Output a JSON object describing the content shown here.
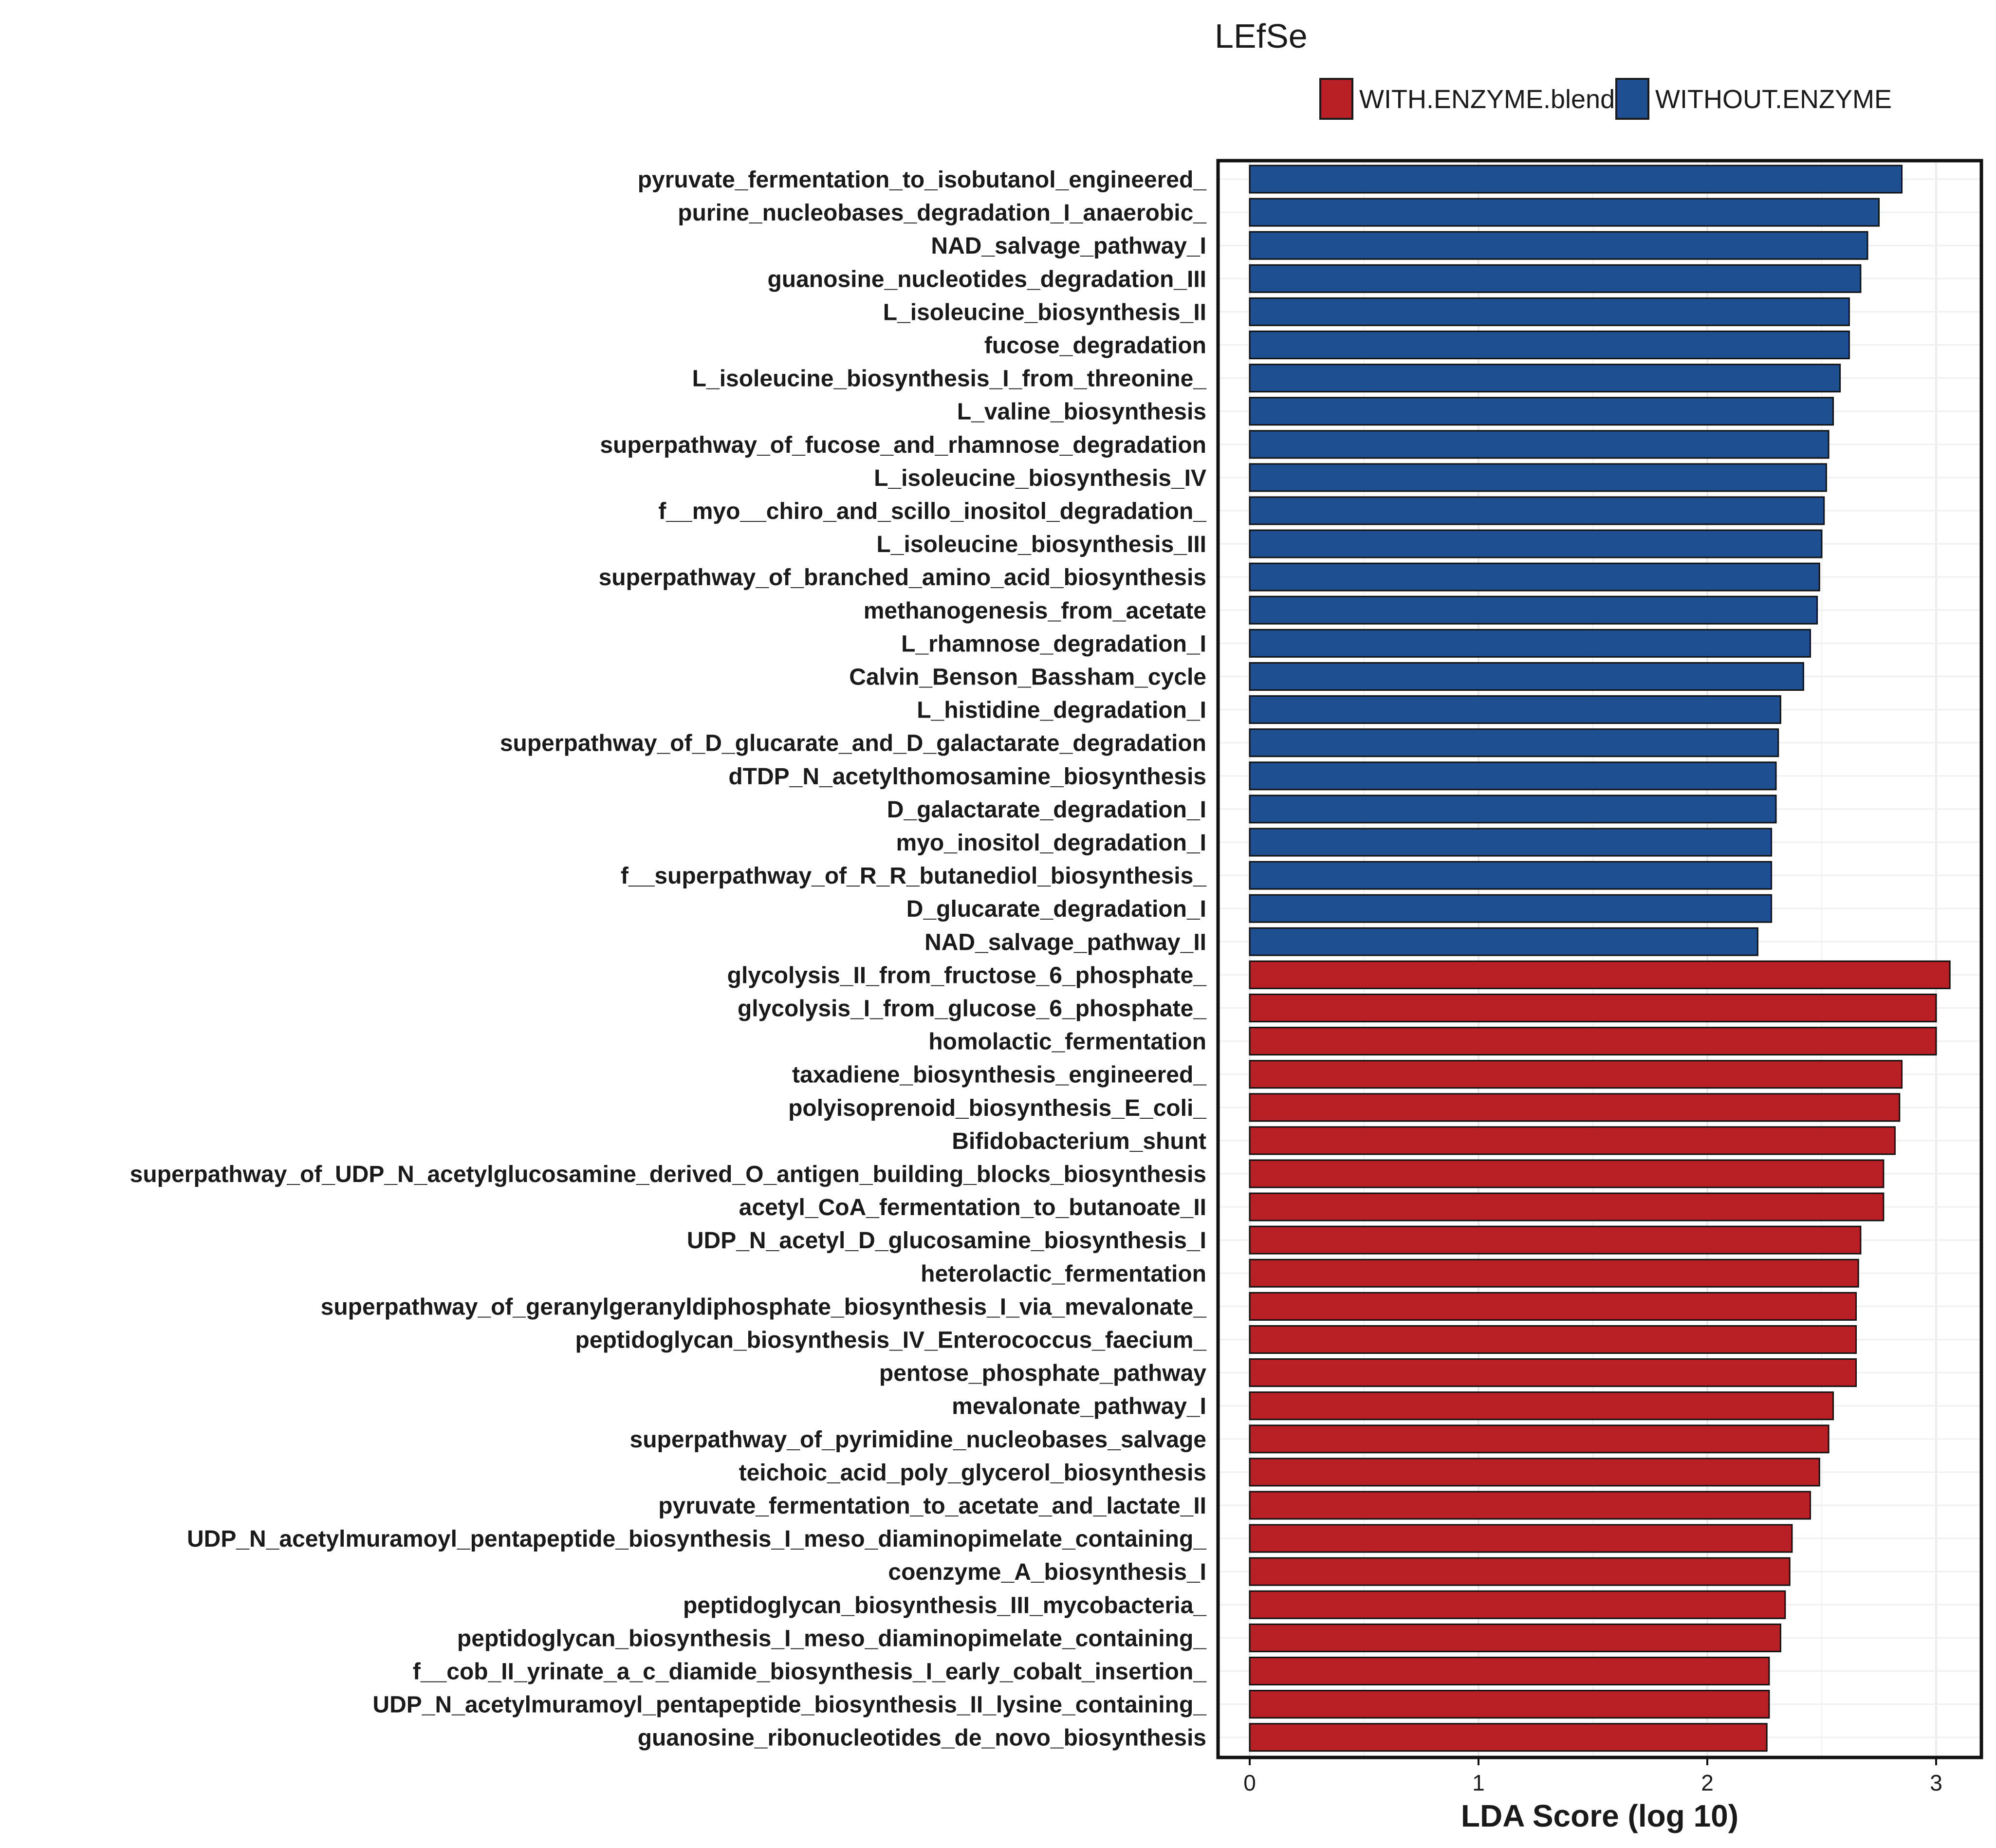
{
  "chart_data": {
    "type": "bar",
    "orientation": "horizontal",
    "title": "LEfSe",
    "xlabel": "LDA Score (log 10)",
    "ylabel": "",
    "xlim": [
      0,
      3.15
    ],
    "xticks": [
      0,
      1,
      2,
      3
    ],
    "grid": true,
    "legend_position": "top-right",
    "legend": [
      {
        "name": "WITH.ENZYME.blend",
        "color": "#b82025"
      },
      {
        "name": "WITHOUT.ENZYME",
        "color": "#1d4f91"
      }
    ],
    "categories": [
      "pyruvate_fermentation_to_isobutanol_engineered_",
      "purine_nucleobases_degradation_I_anaerobic_",
      "NAD_salvage_pathway_I",
      "guanosine_nucleotides_degradation_III",
      "L_isoleucine_biosynthesis_II",
      "fucose_degradation",
      "L_isoleucine_biosynthesis_I_from_threonine_",
      "L_valine_biosynthesis",
      "superpathway_of_fucose_and_rhamnose_degradation",
      "L_isoleucine_biosynthesis_IV",
      "f__myo__chiro_and_scillo_inositol_degradation_",
      "L_isoleucine_biosynthesis_III",
      "superpathway_of_branched_amino_acid_biosynthesis",
      "methanogenesis_from_acetate",
      "L_rhamnose_degradation_I",
      "Calvin_Benson_Bassham_cycle",
      "L_histidine_degradation_I",
      "superpathway_of_D_glucarate_and_D_galactarate_degradation",
      "dTDP_N_acetylthomosamine_biosynthesis",
      "D_galactarate_degradation_I",
      "myo_inositol_degradation_I",
      "f__superpathway_of_R_R_butanediol_biosynthesis_",
      "D_glucarate_degradation_I",
      "NAD_salvage_pathway_II",
      "glycolysis_II_from_fructose_6_phosphate_",
      "glycolysis_I_from_glucose_6_phosphate_",
      "homolactic_fermentation",
      "taxadiene_biosynthesis_engineered_",
      "polyisoprenoid_biosynthesis_E_coli_",
      "Bifidobacterium_shunt",
      "superpathway_of_UDP_N_acetylglucosamine_derived_O_antigen_building_blocks_biosynthesis",
      "acetyl_CoA_fermentation_to_butanoate_II",
      "UDP_N_acetyl_D_glucosamine_biosynthesis_I",
      "heterolactic_fermentation",
      "superpathway_of_geranylgeranyldiphosphate_biosynthesis_I_via_mevalonate_",
      "peptidoglycan_biosynthesis_IV_Enterococcus_faecium_",
      "pentose_phosphate_pathway",
      "mevalonate_pathway_I",
      "superpathway_of_pyrimidine_nucleobases_salvage",
      "teichoic_acid_poly_glycerol_biosynthesis",
      "pyruvate_fermentation_to_acetate_and_lactate_II",
      "UDP_N_acetylmuramoyl_pentapeptide_biosynthesis_I_meso_diaminopimelate_containing_",
      "coenzyme_A_biosynthesis_I",
      "peptidoglycan_biosynthesis_III_mycobacteria_",
      "peptidoglycan_biosynthesis_I_meso_diaminopimelate_containing_",
      "f__cob_II_yrinate_a_c_diamide_biosynthesis_I_early_cobalt_insertion_",
      "UDP_N_acetylmuramoyl_pentapeptide_biosynthesis_II_lysine_containing_",
      "guanosine_ribonucleotides_de_novo_biosynthesis"
    ],
    "values": [
      2.85,
      2.75,
      2.7,
      2.67,
      2.62,
      2.62,
      2.58,
      2.55,
      2.53,
      2.52,
      2.51,
      2.5,
      2.49,
      2.48,
      2.45,
      2.42,
      2.32,
      2.31,
      2.3,
      2.3,
      2.28,
      2.28,
      2.28,
      2.22,
      3.06,
      3.0,
      3.0,
      2.85,
      2.84,
      2.82,
      2.77,
      2.77,
      2.67,
      2.66,
      2.65,
      2.65,
      2.65,
      2.55,
      2.53,
      2.49,
      2.45,
      2.37,
      2.36,
      2.34,
      2.32,
      2.27,
      2.27,
      2.26
    ],
    "groups": [
      "WITHOUT.ENZYME",
      "WITHOUT.ENZYME",
      "WITHOUT.ENZYME",
      "WITHOUT.ENZYME",
      "WITHOUT.ENZYME",
      "WITHOUT.ENZYME",
      "WITHOUT.ENZYME",
      "WITHOUT.ENZYME",
      "WITHOUT.ENZYME",
      "WITHOUT.ENZYME",
      "WITHOUT.ENZYME",
      "WITHOUT.ENZYME",
      "WITHOUT.ENZYME",
      "WITHOUT.ENZYME",
      "WITHOUT.ENZYME",
      "WITHOUT.ENZYME",
      "WITHOUT.ENZYME",
      "WITHOUT.ENZYME",
      "WITHOUT.ENZYME",
      "WITHOUT.ENZYME",
      "WITHOUT.ENZYME",
      "WITHOUT.ENZYME",
      "WITHOUT.ENZYME",
      "WITHOUT.ENZYME",
      "WITH.ENZYME.blend",
      "WITH.ENZYME.blend",
      "WITH.ENZYME.blend",
      "WITH.ENZYME.blend",
      "WITH.ENZYME.blend",
      "WITH.ENZYME.blend",
      "WITH.ENZYME.blend",
      "WITH.ENZYME.blend",
      "WITH.ENZYME.blend",
      "WITH.ENZYME.blend",
      "WITH.ENZYME.blend",
      "WITH.ENZYME.blend",
      "WITH.ENZYME.blend",
      "WITH.ENZYME.blend",
      "WITH.ENZYME.blend",
      "WITH.ENZYME.blend",
      "WITH.ENZYME.blend",
      "WITH.ENZYME.blend",
      "WITH.ENZYME.blend",
      "WITH.ENZYME.blend",
      "WITH.ENZYME.blend",
      "WITH.ENZYME.blend",
      "WITH.ENZYME.blend",
      "WITH.ENZYME.blend"
    ]
  }
}
